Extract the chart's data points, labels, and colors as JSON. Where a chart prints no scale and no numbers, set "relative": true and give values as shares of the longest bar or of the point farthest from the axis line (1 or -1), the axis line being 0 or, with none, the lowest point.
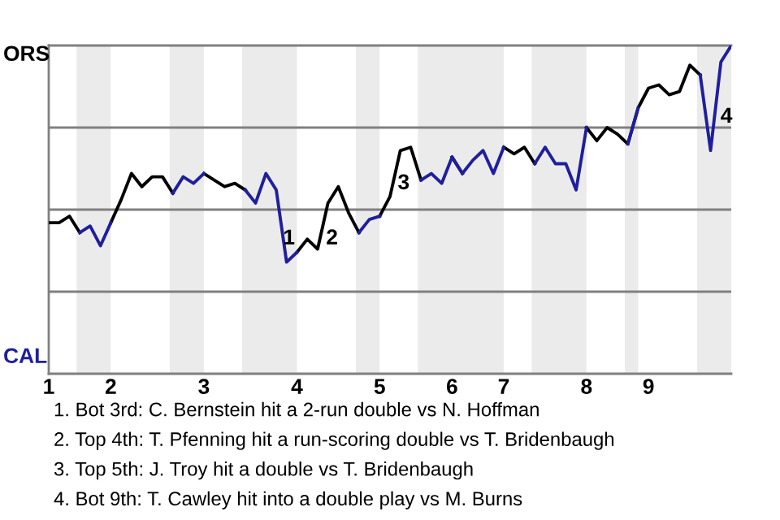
{
  "chart_data": {
    "type": "line",
    "relative": true,
    "categories": [
      "1",
      null,
      null,
      null,
      null,
      null,
      "2",
      null,
      null,
      null,
      null,
      null,
      null,
      null,
      null,
      "3",
      null,
      null,
      null,
      null,
      null,
      null,
      null,
      null,
      "4",
      null,
      null,
      null,
      null,
      null,
      null,
      null,
      "5",
      null,
      null,
      null,
      null,
      null,
      null,
      "6",
      null,
      null,
      null,
      null,
      "7",
      null,
      null,
      null,
      null,
      null,
      null,
      null,
      "8",
      null,
      null,
      null,
      null,
      null,
      "9",
      null,
      null,
      null,
      null,
      null,
      null,
      null,
      null
    ],
    "series": [
      {
        "color": "#000000",
        "values": [
          0.46,
          0.46,
          0.48,
          0.43,
          null,
          null,
          0.46,
          0.53,
          0.61,
          0.57,
          0.6,
          0.6,
          0.55,
          null,
          null,
          0.61,
          0.59,
          0.57,
          0.58,
          0.56,
          null,
          null,
          null,
          null,
          0.37,
          0.41,
          0.38,
          0.52,
          0.57,
          0.49,
          0.43,
          null,
          0.48,
          0.54,
          0.68,
          0.69,
          0.59,
          null,
          null,
          0.66,
          0.61,
          null,
          null,
          null,
          0.69,
          0.67,
          0.69,
          0.64,
          null,
          null,
          null,
          null,
          0.75,
          0.71,
          0.75,
          0.73,
          0.7,
          0.81,
          0.87,
          0.88,
          0.85,
          0.86,
          0.94,
          0.91,
          null,
          null,
          null
        ]
      },
      {
        "color": "#1f1f9e",
        "values": [
          null,
          null,
          null,
          0.43,
          0.45,
          0.39,
          0.46,
          null,
          null,
          null,
          null,
          null,
          0.55,
          0.6,
          0.58,
          0.61,
          null,
          null,
          null,
          0.56,
          0.52,
          0.61,
          0.56,
          0.34,
          0.37,
          null,
          null,
          null,
          null,
          null,
          0.43,
          0.47,
          0.48,
          null,
          null,
          null,
          0.59,
          0.61,
          0.58,
          0.66,
          0.61,
          0.65,
          0.68,
          0.61,
          0.69,
          null,
          null,
          0.64,
          0.69,
          0.64,
          0.64,
          0.56,
          0.75,
          null,
          null,
          null,
          0.7,
          0.81,
          null,
          null,
          null,
          null,
          null,
          0.91,
          0.68,
          0.95,
          1
        ]
      }
    ],
    "grid": "y",
    "annotations": [
      "ORS",
      "CAL",
      "1",
      "2",
      "3",
      "4",
      "1. Bot 3rd: C. Bernstein hit a 2-run double vs N. Hoffman",
      "2. Top 4th: T. Pfenning hit a run-scoring double vs T. Bridenbaugh",
      "3. Top 5th: J. Troy hit a double vs T. Bridenbaugh",
      "4. Bot 9th: T. Cawley hit into a double play vs M. Burns"
    ]
  }
}
